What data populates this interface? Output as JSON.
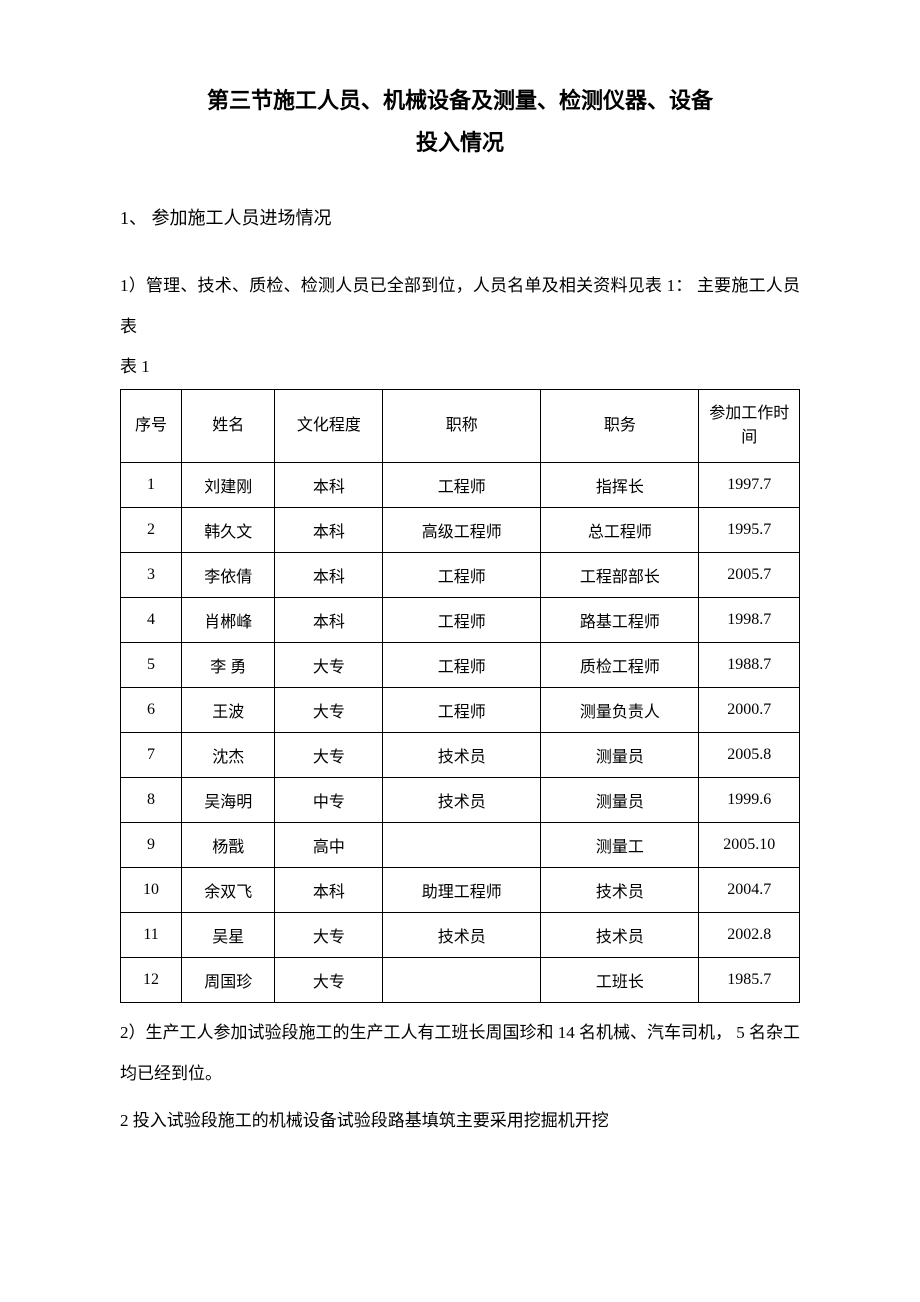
{
  "title_line1": "第三节施工人员、机械设备及测量、检测仪器、设备",
  "title_line2": "投入情况",
  "heading1": "1、 参加施工人员进场情况",
  "para1": "1）管理、技术、质检、检测人员已全部到位，人员名单及相关资料见表 1：  主要施工人员表",
  "table_label": "表 1",
  "table": {
    "columns": [
      "序号",
      "姓名",
      "文化程度",
      "职称",
      "职务",
      "参加工作时间"
    ],
    "col_widths": [
      "8.5%",
      "13%",
      "15%",
      "22%",
      "22%",
      "14%"
    ],
    "border_color": "#000000",
    "background_color": "#ffffff",
    "font_size": 16,
    "rows": [
      [
        "1",
        "刘建刚",
        "本科",
        "工程师",
        "指挥长",
        "1997.7"
      ],
      [
        "2",
        "韩久文",
        "本科",
        "高级工程师",
        "总工程师",
        "1995.7"
      ],
      [
        "3",
        "李依倩",
        "本科",
        "工程师",
        "工程部部长",
        "2005.7"
      ],
      [
        "4",
        "肖郴峰",
        "本科",
        "工程师",
        "路基工程师",
        "1998.7"
      ],
      [
        "5",
        "李  勇",
        "大专",
        "工程师",
        "质检工程师",
        "1988.7"
      ],
      [
        "6",
        "王波",
        "大专",
        "工程师",
        "测量负责人",
        "2000.7"
      ],
      [
        "7",
        "沈杰",
        "大专",
        "技术员",
        "测量员",
        "2005.8"
      ],
      [
        "8",
        "吴海明",
        "中专",
        "技术员",
        "测量员",
        "1999.6"
      ],
      [
        "9",
        "杨戬",
        "高中",
        "",
        "测量工",
        "2005.10"
      ],
      [
        "10",
        "余双飞",
        "本科",
        "助理工程师",
        "技术员",
        "2004.7"
      ],
      [
        "11",
        "吴星",
        "大专",
        "技术员",
        "技术员",
        "2002.8"
      ],
      [
        "12",
        "周国珍",
        "大专",
        "",
        "工班长",
        "1985.7"
      ]
    ]
  },
  "para2": "2）生产工人参加试验段施工的生产工人有工班长周国珍和 14 名机械、汽车司机， 5 名杂工均已经到位。",
  "para3": "2 投入试验段施工的机械设备试验段路基填筑主要采用挖掘机开挖"
}
